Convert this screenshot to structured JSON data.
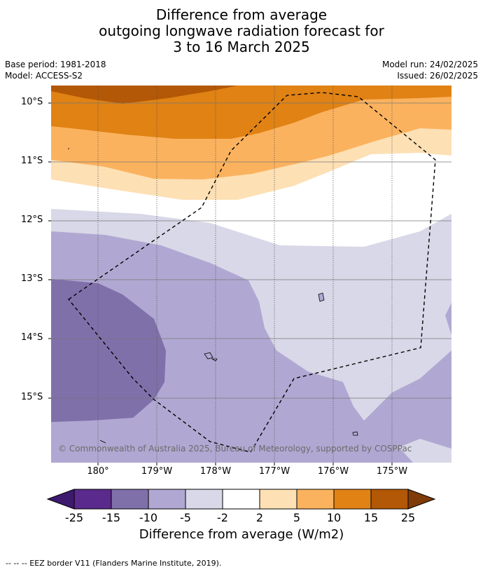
{
  "title": {
    "line1": "Difference from average",
    "line2": "outgoing longwave radiation forecast for",
    "line3": "3 to 16 March 2025"
  },
  "meta": {
    "base_period": "Base period: 1981-2018",
    "model": "Model: ACCESS-S2",
    "model_run": "Model run: 24/02/2025",
    "issued": "Issued: 26/02/2025"
  },
  "map": {
    "latitude_labels": [
      "10°S",
      "11°S",
      "12°S",
      "13°S",
      "14°S",
      "15°S"
    ],
    "longitude_labels": [
      "180°",
      "179°W",
      "178°W",
      "177°W",
      "176°W",
      "175°W"
    ],
    "credit": "© Commonwealth of Australia 2025, Bureau of Meteorology, supported by COSPPac",
    "boundary_style": "dashed EEZ outline"
  },
  "colorbar": {
    "title": "Difference from average (W/m2)",
    "tick_labels": [
      "-25",
      "-15",
      "-10",
      "-5",
      "-2",
      "2",
      "5",
      "10",
      "15",
      "25"
    ],
    "colors": [
      "#3d1a6e",
      "#5a2a8c",
      "#8070aa",
      "#b0a8d2",
      "#d8d8e8",
      "#ffffff",
      "#fde0b4",
      "#fbb25e",
      "#e08214",
      "#b35806",
      "#7f3b08"
    ]
  },
  "footer": "--  --  -- EEZ border V11 (Flanders Marine Institute, 2019)."
}
